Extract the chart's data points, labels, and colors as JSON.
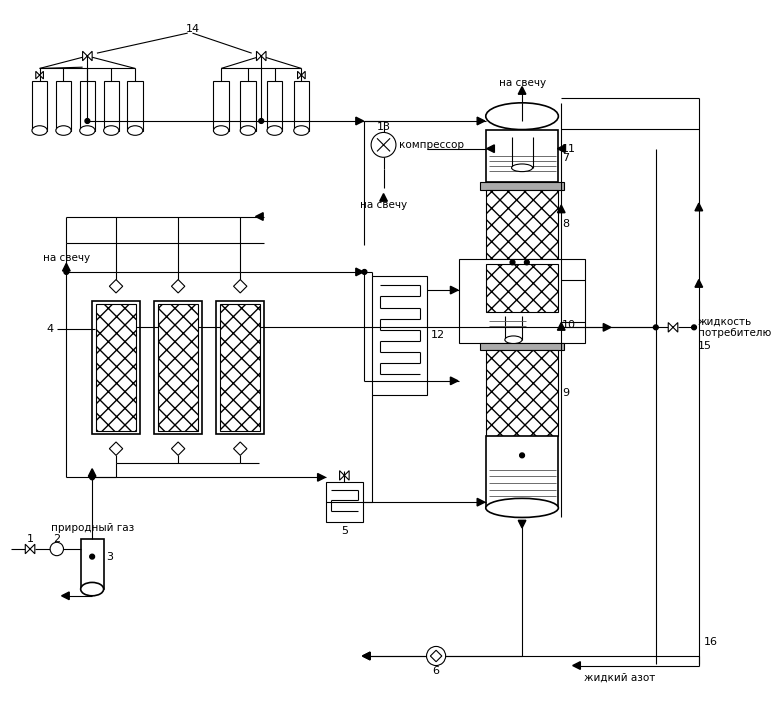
{
  "bg_color": "#ffffff",
  "figsize": [
    7.8,
    7.12
  ],
  "dpi": 100,
  "labels": {
    "prirodny_gaz": "природный газ",
    "na_svechu": "на свечу",
    "compressor": "компрессор",
    "zhidkost": "жидкость\nпотребителю",
    "zhidky_azot": "жидкий азот",
    "n1": "1",
    "n2": "2",
    "n3": "3",
    "n4": "4",
    "n5": "5",
    "n6": "6",
    "n7": "7",
    "n8": "8",
    "n9": "9",
    "n10": "10",
    "n11": "11",
    "n12": "12",
    "n13": "13",
    "n14": "14",
    "n15": "15",
    "n16": "16"
  }
}
